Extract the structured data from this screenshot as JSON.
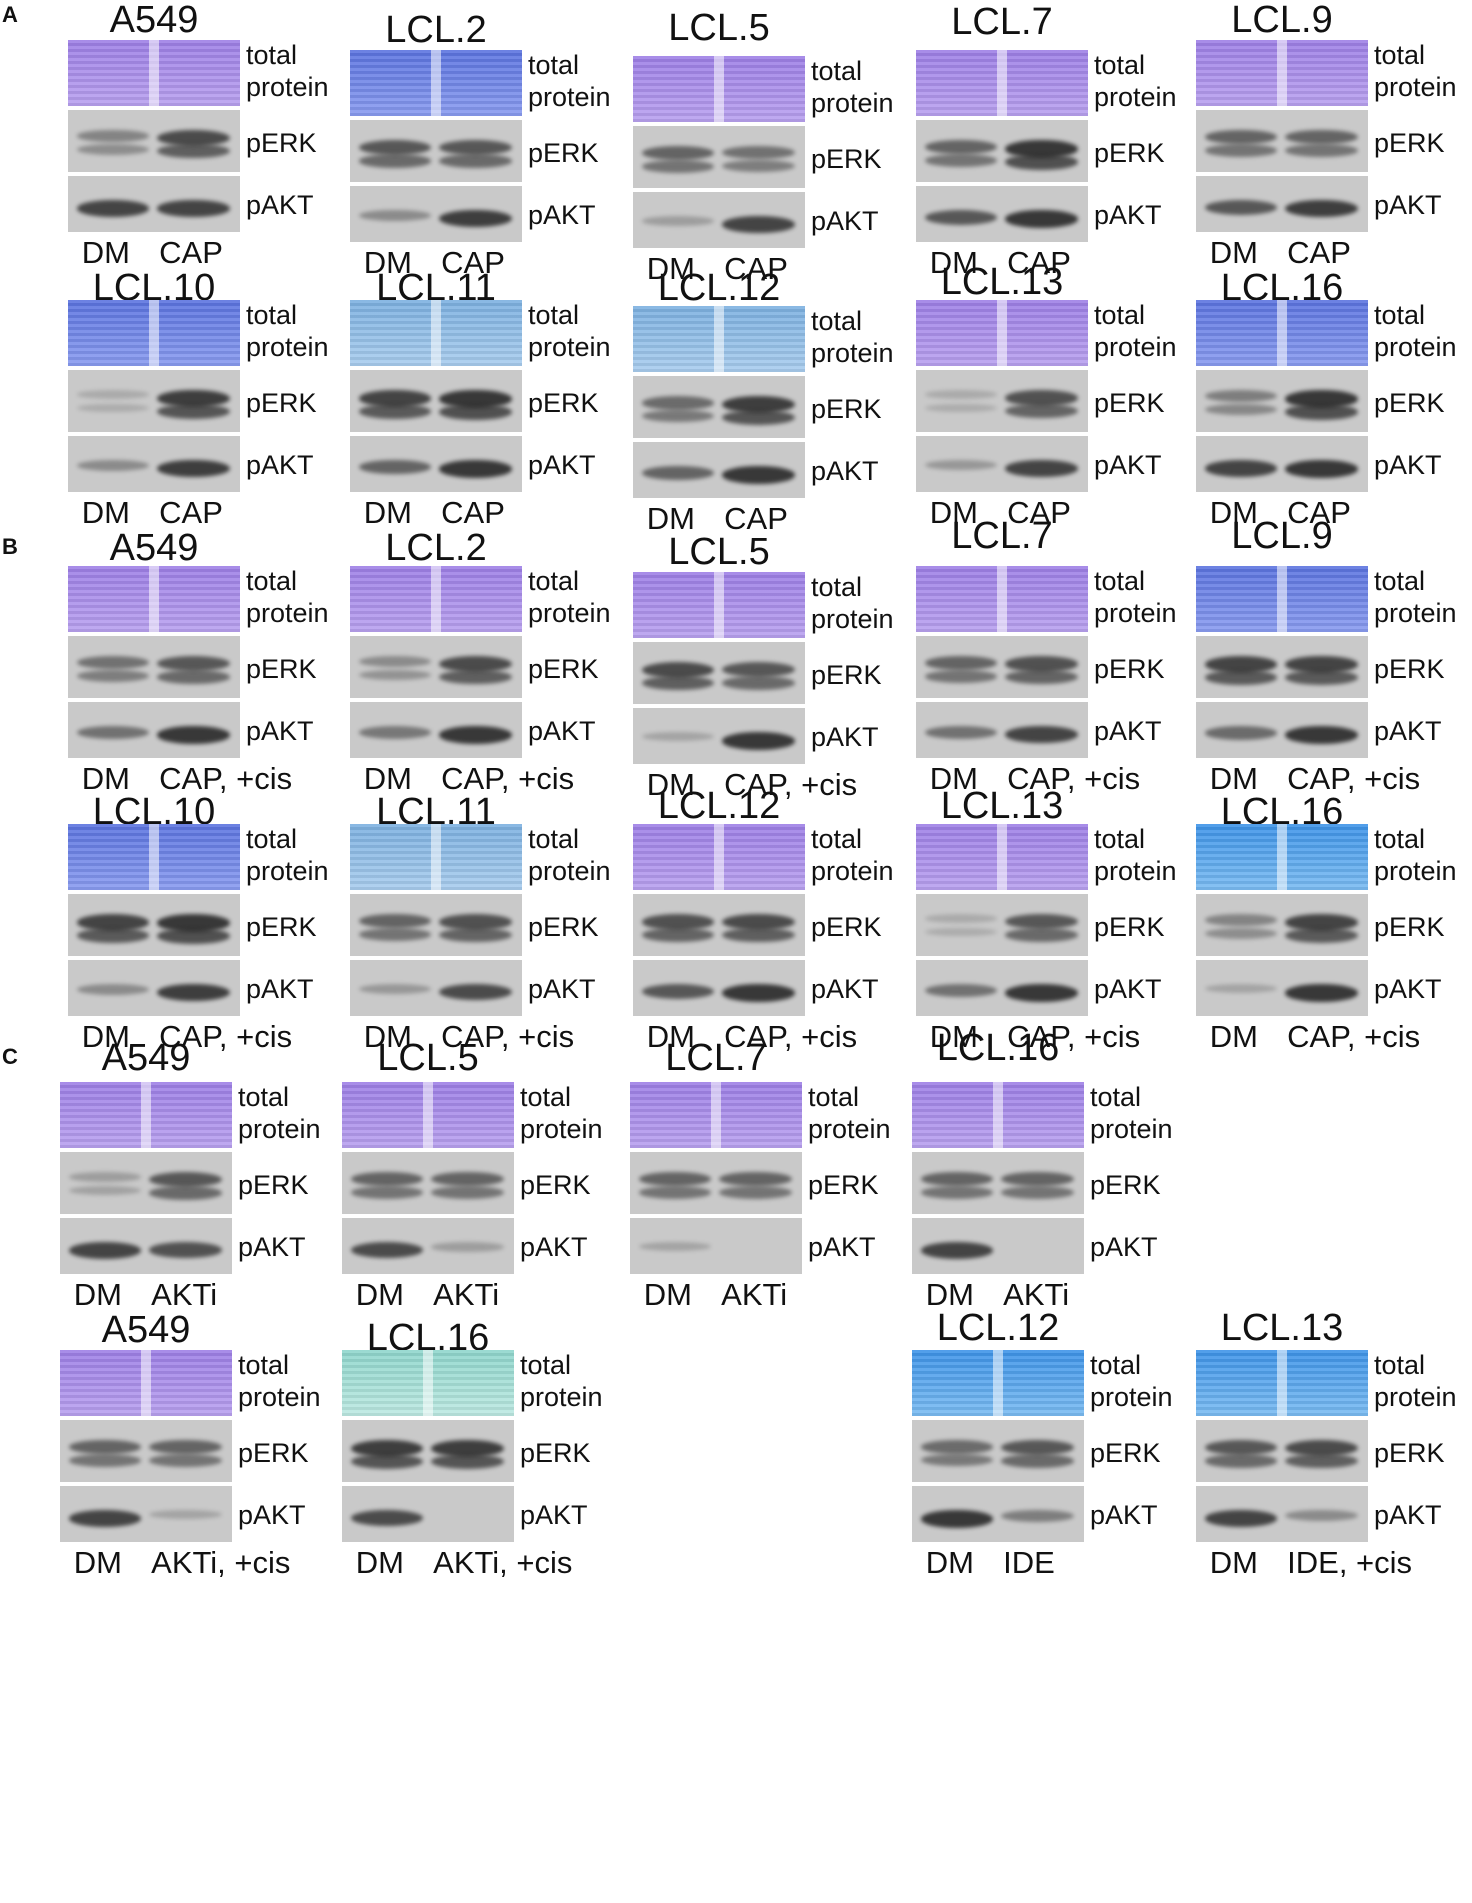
{
  "panels": [
    "A",
    "B",
    "C"
  ],
  "row_labels": {
    "total_protein_top": "total",
    "total_protein_bottom": "protein",
    "perk": "pERK",
    "pakt": "pAKT"
  },
  "blots": [
    {
      "title": "A549",
      "lanes": [
        "DM",
        "CAP"
      ]
    },
    {
      "title": "LCL.2",
      "lanes": [
        "DM",
        "CAP"
      ]
    },
    {
      "title": "LCL.5",
      "lanes": [
        "DM",
        "CAP"
      ]
    },
    {
      "title": "LCL.7",
      "lanes": [
        "DM",
        "CAP"
      ]
    },
    {
      "title": "LCL.9",
      "lanes": [
        "DM",
        "CAP"
      ]
    },
    {
      "title": "LCL.10",
      "lanes": [
        "DM",
        "CAP"
      ]
    },
    {
      "title": "LCL.11",
      "lanes": [
        "DM",
        "CAP"
      ]
    },
    {
      "title": "LCL.12",
      "lanes": [
        "DM",
        "CAP"
      ]
    },
    {
      "title": "LCL.13",
      "lanes": [
        "DM",
        "CAP"
      ]
    },
    {
      "title": "LCL.16",
      "lanes": [
        "DM",
        "CAP"
      ]
    },
    {
      "title": "A549",
      "lanes": [
        "DM",
        "CAP, +cis"
      ]
    },
    {
      "title": "LCL.2",
      "lanes": [
        "DM",
        "CAP, +cis"
      ]
    },
    {
      "title": "LCL.5",
      "lanes": [
        "DM",
        "CAP, +cis"
      ]
    },
    {
      "title": "LCL.7",
      "lanes": [
        "DM",
        "CAP, +cis"
      ]
    },
    {
      "title": "LCL.9",
      "lanes": [
        "DM",
        "CAP, +cis"
      ]
    },
    {
      "title": "LCL.10",
      "lanes": [
        "DM",
        "CAP, +cis"
      ]
    },
    {
      "title": "LCL.11",
      "lanes": [
        "DM",
        "CAP, +cis"
      ]
    },
    {
      "title": "LCL.12",
      "lanes": [
        "DM",
        "CAP, +cis"
      ]
    },
    {
      "title": "LCL.13",
      "lanes": [
        "DM",
        "CAP, +cis"
      ]
    },
    {
      "title": "LCL.16",
      "lanes": [
        "DM",
        "CAP, +cis"
      ]
    },
    {
      "title": "A549",
      "lanes": [
        "DM",
        "AKTi"
      ]
    },
    {
      "title": "LCL.5",
      "lanes": [
        "DM",
        "AKTi"
      ]
    },
    {
      "title": "LCL.7",
      "lanes": [
        "DM",
        "AKTi"
      ]
    },
    {
      "title": "LCL.16",
      "lanes": [
        "DM",
        "AKTi"
      ]
    },
    {
      "title": "A549",
      "lanes": [
        "DM",
        "AKTi, +cis"
      ]
    },
    {
      "title": "LCL.16",
      "lanes": [
        "DM",
        "AKTi, +cis"
      ]
    },
    {
      "title": "LCL.12",
      "lanes": [
        "DM",
        "IDE"
      ]
    },
    {
      "title": "LCL.13",
      "lanes": [
        "DM",
        "IDE, +cis"
      ]
    }
  ],
  "colors": {
    "violet_stain": "#9d7fe6",
    "blue_stain": "#5b73df",
    "light_blue_stain": "#7cb0e0",
    "bright_blue_stain": "#3d93e8",
    "teal_stain": "#8fd6cc",
    "blot_background": "#c9c9c9",
    "band": "#2a2a2a"
  }
}
